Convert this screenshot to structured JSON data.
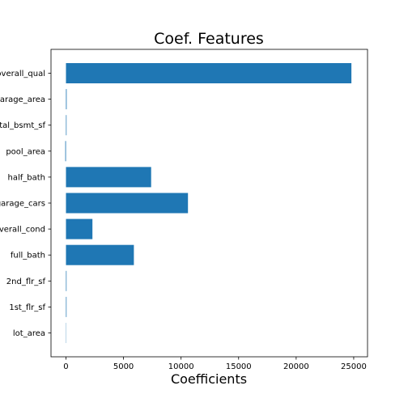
{
  "chart_data": {
    "type": "bar",
    "orientation": "horizontal",
    "title": "Coef. Features",
    "xlabel": "Coefficients",
    "ylabel": "",
    "categories": [
      "overall_qual",
      "garage_area",
      "total_bsmt_sf",
      "pool_area",
      "half_bath",
      "garage_cars",
      "overall_cond",
      "full_bath",
      "2nd_flr_sf",
      "1st_flr_sf",
      "lot_area"
    ],
    "values": [
      24800,
      60,
      50,
      -60,
      7400,
      10600,
      2300,
      5900,
      50,
      50,
      5
    ],
    "xlim": [
      -1300,
      26200
    ],
    "xticks": [
      0,
      5000,
      10000,
      15000,
      20000,
      25000
    ],
    "xtick_labels": [
      "0",
      "5000",
      "10000",
      "15000",
      "20000",
      "25000"
    ],
    "grid": false,
    "color": "#1f77b4"
  }
}
